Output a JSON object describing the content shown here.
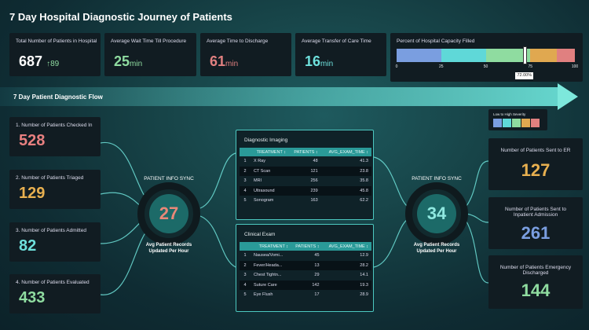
{
  "title": "7 Day Hospital Diagnostic Journey of Patients",
  "kpis": [
    {
      "label": "Total Number of Patients in Hospital",
      "value": "687",
      "delta": "89",
      "delta_icon": "arrow-up-icon",
      "color": "#ffffff"
    },
    {
      "label": "Average Wait Time Till Procedure",
      "value": "25",
      "unit": "min",
      "color": "#8fdca0"
    },
    {
      "label": "Average Time to Discharge",
      "value": "61",
      "unit": "min",
      "color": "#e08080"
    },
    {
      "label": "Average Transfer of Care Time",
      "value": "16",
      "unit": "min",
      "color": "#6ee0dc"
    }
  ],
  "capacity": {
    "label": "Percent of Hospital Capacity Filled",
    "value_percent": 72,
    "value_label": "72.00%",
    "ticks": [
      "0",
      "25",
      "50",
      "75",
      "100"
    ],
    "bands": [
      {
        "to": 25,
        "color": "#7a9ee0"
      },
      {
        "to": 50,
        "color": "#5fd8d8"
      },
      {
        "to": 75,
        "color": "#8fdca0"
      },
      {
        "to": 90,
        "color": "#e0a850"
      },
      {
        "to": 100,
        "color": "#e08080"
      }
    ]
  },
  "flow_title": "7 Day Patient Diagnostic Flow",
  "left_cards": [
    {
      "label": "1. Number of Patients Checked In",
      "value": "528",
      "color": "#e88080"
    },
    {
      "label": "2. Number of Patients Triaged",
      "value": "129",
      "color": "#e8b050"
    },
    {
      "label": "3. Number of Patients Admitted",
      "value": "82",
      "color": "#6ee0dc"
    },
    {
      "label": "4. Number of Patients Evaluated",
      "value": "433",
      "color": "#8fdca0"
    }
  ],
  "sync": [
    {
      "title": "PATIENT INFO SYNC",
      "value": "27",
      "subtitle": "Avg Patient Records Updated Per Hour",
      "color": "#e88878"
    },
    {
      "title": "PATIENT INFO SYNC",
      "value": "34",
      "subtitle": "Avg Patient Records Updated Per Hour",
      "color": "#8fe8e0"
    }
  ],
  "tables": [
    {
      "title": "Diagnostic Imaging",
      "columns": [
        "TREATMENT ↕",
        "PATIENTS ↕",
        "AVG_EXAM_TIME ↕"
      ],
      "rows": [
        [
          "1",
          "X Ray",
          "48",
          "41.3"
        ],
        [
          "2",
          "CT Scan",
          "121",
          "23.8"
        ],
        [
          "3",
          "MRI",
          "256",
          "35.8"
        ],
        [
          "4",
          "Ultrasound",
          "239",
          "45.8"
        ],
        [
          "5",
          "Sonogram",
          "163",
          "62.2"
        ]
      ]
    },
    {
      "title": "Clinical Exam",
      "columns": [
        "TREATMENT ↕",
        "PATIENTS ↕",
        "AVG_EXAM_TIME ↕"
      ],
      "rows": [
        [
          "1",
          "Nausea/Vomi...",
          "45",
          "12.9"
        ],
        [
          "2",
          "Fever/Heada...",
          "13",
          "28.2"
        ],
        [
          "3",
          "Chest Tightn...",
          "29",
          "14.1"
        ],
        [
          "4",
          "Suture Care",
          "142",
          "19.3"
        ],
        [
          "5",
          "Eye Flush",
          "17",
          "28.9"
        ]
      ]
    }
  ],
  "legend": {
    "label": "Low to High Severity",
    "colors": [
      "#7a9ee0",
      "#5fd8d8",
      "#8fdca0",
      "#e0a850",
      "#e08080"
    ]
  },
  "right_cards": [
    {
      "label": "Number of Patients Sent to ER",
      "value": "127",
      "color": "#e8b050"
    },
    {
      "label": "Number of Patients Sent to Inpatient Admission",
      "value": "261",
      "color": "#7a9ee0"
    },
    {
      "label": "Number of Patients Emergency Discharged",
      "value": "144",
      "color": "#8fdca0"
    }
  ]
}
